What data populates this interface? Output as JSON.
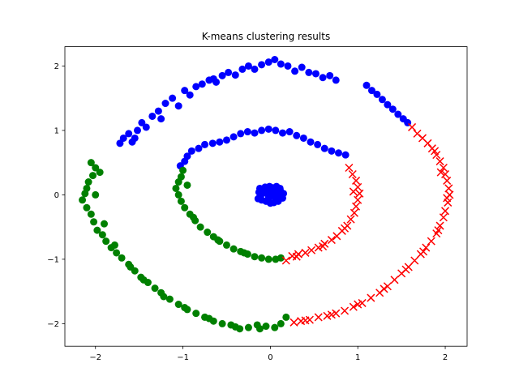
{
  "chart_data": {
    "type": "scatter",
    "title": "K-means clustering results",
    "xlabel": "",
    "ylabel": "",
    "xlim": [
      -2.35,
      2.25
    ],
    "ylim": [
      -2.35,
      2.3
    ],
    "xticks": [
      -2,
      -1,
      0,
      1,
      2
    ],
    "yticks": [
      -2,
      -1,
      0,
      1,
      2
    ],
    "xtick_labels": [
      "−2",
      "−1",
      "0",
      "1",
      "2"
    ],
    "ytick_labels": [
      "−2",
      "−1",
      "0",
      "1",
      "2"
    ],
    "grid": false,
    "legend": false,
    "series": [
      {
        "color": "#0000ff",
        "marker": "circle",
        "points": [
          [
            0.0,
            0.0
          ],
          [
            0.03,
            0.04
          ],
          [
            -0.04,
            0.02
          ],
          [
            0.05,
            -0.03
          ],
          [
            -0.02,
            -0.05
          ],
          [
            0.08,
            0.06
          ],
          [
            -0.08,
            0.07
          ],
          [
            0.1,
            -0.02
          ],
          [
            -0.11,
            -0.01
          ],
          [
            0.06,
            -0.09
          ],
          [
            -0.05,
            -0.1
          ],
          [
            0.02,
            0.11
          ],
          [
            -0.01,
            0.13
          ],
          [
            0.12,
            0.05
          ],
          [
            -0.13,
            0.04
          ],
          [
            0.09,
            -0.1
          ],
          [
            -0.1,
            -0.08
          ],
          [
            0.14,
            -0.05
          ],
          [
            -0.06,
            0.12
          ],
          [
            0.04,
            -0.12
          ],
          [
            0.15,
            0.02
          ],
          [
            -0.14,
            -0.06
          ],
          [
            0.0,
            -0.13
          ],
          [
            0.07,
            0.13
          ],
          [
            -0.02,
            0.07
          ],
          [
            0.11,
            0.1
          ],
          [
            -0.12,
            0.1
          ],
          [
            -1.72,
            0.8
          ],
          [
            -1.68,
            0.88
          ],
          [
            -1.62,
            0.95
          ],
          [
            -1.58,
            0.82
          ],
          [
            -1.52,
            1.0
          ],
          [
            -1.47,
            1.12
          ],
          [
            -1.42,
            1.05
          ],
          [
            -1.35,
            1.22
          ],
          [
            -1.28,
            1.3
          ],
          [
            -1.25,
            1.18
          ],
          [
            -1.2,
            1.42
          ],
          [
            -1.12,
            1.5
          ],
          [
            -1.05,
            1.38
          ],
          [
            -0.98,
            1.62
          ],
          [
            -0.92,
            1.55
          ],
          [
            -0.85,
            1.68
          ],
          [
            -0.78,
            1.72
          ],
          [
            -0.7,
            1.78
          ],
          [
            -0.62,
            1.75
          ],
          [
            -0.55,
            1.85
          ],
          [
            -0.48,
            1.9
          ],
          [
            -0.4,
            1.86
          ],
          [
            -0.32,
            1.95
          ],
          [
            -0.25,
            2.0
          ],
          [
            -0.18,
            1.95
          ],
          [
            -0.1,
            2.02
          ],
          [
            -0.02,
            2.06
          ],
          [
            0.05,
            2.1
          ],
          [
            0.12,
            2.03
          ],
          [
            0.2,
            2.0
          ],
          [
            0.28,
            1.92
          ],
          [
            0.36,
            1.98
          ],
          [
            0.44,
            1.9
          ],
          [
            0.52,
            1.88
          ],
          [
            0.6,
            1.82
          ],
          [
            0.68,
            1.85
          ],
          [
            0.75,
            1.78
          ],
          [
            1.1,
            1.7
          ],
          [
            1.16,
            1.62
          ],
          [
            1.22,
            1.56
          ],
          [
            1.28,
            1.48
          ],
          [
            1.34,
            1.4
          ],
          [
            1.4,
            1.33
          ],
          [
            1.46,
            1.25
          ],
          [
            1.52,
            1.18
          ],
          [
            1.57,
            1.12
          ],
          [
            -1.55,
            0.88
          ],
          [
            -0.65,
            1.8
          ],
          [
            -1.03,
            0.45
          ],
          [
            -0.98,
            0.52
          ],
          [
            -0.95,
            0.6
          ],
          [
            -0.9,
            0.68
          ],
          [
            -0.82,
            0.72
          ],
          [
            -0.75,
            0.78
          ],
          [
            -0.66,
            0.8
          ],
          [
            -0.58,
            0.82
          ],
          [
            -0.5,
            0.85
          ],
          [
            -0.42,
            0.9
          ],
          [
            -0.34,
            0.95
          ],
          [
            -0.26,
            0.98
          ],
          [
            -0.18,
            0.96
          ],
          [
            -0.1,
            1.0
          ],
          [
            -0.02,
            1.02
          ],
          [
            0.06,
            1.0
          ],
          [
            0.14,
            0.96
          ],
          [
            0.22,
            0.98
          ],
          [
            0.3,
            0.92
          ],
          [
            0.38,
            0.88
          ],
          [
            0.46,
            0.82
          ],
          [
            0.54,
            0.78
          ],
          [
            0.62,
            0.72
          ],
          [
            0.7,
            0.68
          ],
          [
            0.78,
            0.65
          ],
          [
            0.86,
            0.62
          ]
        ]
      },
      {
        "color": "#008000",
        "marker": "circle",
        "points": [
          [
            -2.05,
            0.5
          ],
          [
            -2.0,
            0.42
          ],
          [
            -2.03,
            0.3
          ],
          [
            -2.08,
            0.2
          ],
          [
            -2.1,
            0.1
          ],
          [
            -2.12,
            0.02
          ],
          [
            -2.15,
            -0.08
          ],
          [
            -2.1,
            -0.2
          ],
          [
            -2.05,
            -0.3
          ],
          [
            -2.02,
            -0.42
          ],
          [
            -1.98,
            -0.55
          ],
          [
            -1.92,
            -0.62
          ],
          [
            -1.88,
            -0.72
          ],
          [
            -1.82,
            -0.82
          ],
          [
            -1.76,
            -0.9
          ],
          [
            -1.7,
            -0.98
          ],
          [
            -1.62,
            -1.08
          ],
          [
            -1.55,
            -1.18
          ],
          [
            -1.48,
            -1.28
          ],
          [
            -1.4,
            -1.36
          ],
          [
            -1.32,
            -1.45
          ],
          [
            -1.25,
            -1.52
          ],
          [
            -1.15,
            -1.62
          ],
          [
            -1.05,
            -1.7
          ],
          [
            -0.95,
            -1.78
          ],
          [
            -0.85,
            -1.84
          ],
          [
            -0.75,
            -1.9
          ],
          [
            -0.65,
            -1.96
          ],
          [
            -0.55,
            -2.0
          ],
          [
            -0.45,
            -2.02
          ],
          [
            -0.35,
            -2.08
          ],
          [
            -0.25,
            -2.06
          ],
          [
            -0.15,
            -2.02
          ],
          [
            -0.05,
            -2.04
          ],
          [
            0.05,
            -2.06
          ],
          [
            0.12,
            -2.0
          ],
          [
            0.18,
            -1.9
          ],
          [
            -1.95,
            0.35
          ],
          [
            -2.0,
            0.0
          ],
          [
            -1.9,
            -0.45
          ],
          [
            -1.78,
            -0.78
          ],
          [
            -1.6,
            -1.12
          ],
          [
            -1.45,
            -1.32
          ],
          [
            -1.22,
            -1.58
          ],
          [
            -0.98,
            -1.75
          ],
          [
            -0.7,
            -1.92
          ],
          [
            -0.4,
            -2.05
          ],
          [
            -0.12,
            -2.08
          ],
          [
            -1.0,
            0.38
          ],
          [
            -1.02,
            0.28
          ],
          [
            -1.05,
            0.2
          ],
          [
            -1.08,
            0.1
          ],
          [
            -1.05,
            0.0
          ],
          [
            -1.02,
            -0.1
          ],
          [
            -0.98,
            -0.2
          ],
          [
            -0.92,
            -0.3
          ],
          [
            -0.86,
            -0.4
          ],
          [
            -0.8,
            -0.5
          ],
          [
            -0.72,
            -0.58
          ],
          [
            -0.65,
            -0.65
          ],
          [
            -0.58,
            -0.72
          ],
          [
            -0.5,
            -0.78
          ],
          [
            -0.42,
            -0.84
          ],
          [
            -0.34,
            -0.88
          ],
          [
            -0.26,
            -0.92
          ],
          [
            -0.18,
            -0.96
          ],
          [
            -0.1,
            -0.98
          ],
          [
            -0.02,
            -1.0
          ],
          [
            0.06,
            -1.0
          ],
          [
            0.12,
            -0.98
          ],
          [
            -0.95,
            0.15
          ],
          [
            -0.88,
            -0.35
          ],
          [
            -0.6,
            -0.7
          ],
          [
            -0.3,
            -0.9
          ]
        ]
      },
      {
        "color": "#ff0000",
        "marker": "x",
        "points": [
          [
            1.62,
            1.05
          ],
          [
            1.68,
            0.95
          ],
          [
            1.74,
            0.88
          ],
          [
            1.8,
            0.8
          ],
          [
            1.85,
            0.72
          ],
          [
            1.9,
            0.62
          ],
          [
            1.94,
            0.52
          ],
          [
            1.98,
            0.42
          ],
          [
            2.0,
            0.32
          ],
          [
            2.02,
            0.22
          ],
          [
            2.04,
            0.1
          ],
          [
            2.05,
            0.0
          ],
          [
            2.03,
            -0.12
          ],
          [
            2.0,
            -0.25
          ],
          [
            1.98,
            -0.35
          ],
          [
            1.94,
            -0.48
          ],
          [
            1.9,
            -0.6
          ],
          [
            1.84,
            -0.72
          ],
          [
            1.78,
            -0.82
          ],
          [
            1.72,
            -0.92
          ],
          [
            1.65,
            -1.02
          ],
          [
            1.58,
            -1.12
          ],
          [
            1.5,
            -1.22
          ],
          [
            1.42,
            -1.32
          ],
          [
            1.34,
            -1.42
          ],
          [
            1.25,
            -1.52
          ],
          [
            1.15,
            -1.6
          ],
          [
            1.05,
            -1.68
          ],
          [
            0.95,
            -1.74
          ],
          [
            0.85,
            -1.8
          ],
          [
            0.75,
            -1.84
          ],
          [
            0.65,
            -1.88
          ],
          [
            0.55,
            -1.9
          ],
          [
            0.45,
            -1.94
          ],
          [
            0.35,
            -1.96
          ],
          [
            0.27,
            -1.98
          ],
          [
            1.88,
            0.68
          ],
          [
            1.95,
            0.35
          ],
          [
            2.02,
            -0.05
          ],
          [
            1.92,
            -0.55
          ],
          [
            1.75,
            -0.88
          ],
          [
            1.55,
            -1.16
          ],
          [
            1.3,
            -1.46
          ],
          [
            1.0,
            -1.7
          ],
          [
            0.7,
            -1.86
          ],
          [
            0.4,
            -1.95
          ],
          [
            0.9,
            0.42
          ],
          [
            0.94,
            0.32
          ],
          [
            0.98,
            0.22
          ],
          [
            1.0,
            0.12
          ],
          [
            1.02,
            0.02
          ],
          [
            1.0,
            -0.08
          ],
          [
            0.98,
            -0.18
          ],
          [
            0.96,
            -0.28
          ],
          [
            0.92,
            -0.38
          ],
          [
            0.88,
            -0.48
          ],
          [
            0.82,
            -0.56
          ],
          [
            0.76,
            -0.64
          ],
          [
            0.7,
            -0.7
          ],
          [
            0.62,
            -0.76
          ],
          [
            0.55,
            -0.82
          ],
          [
            0.47,
            -0.86
          ],
          [
            0.4,
            -0.9
          ],
          [
            0.32,
            -0.92
          ],
          [
            0.25,
            -0.95
          ],
          [
            0.18,
            -1.02
          ],
          [
            0.95,
            0.05
          ],
          [
            0.85,
            -0.52
          ],
          [
            0.6,
            -0.8
          ],
          [
            0.3,
            -0.96
          ]
        ]
      }
    ]
  }
}
